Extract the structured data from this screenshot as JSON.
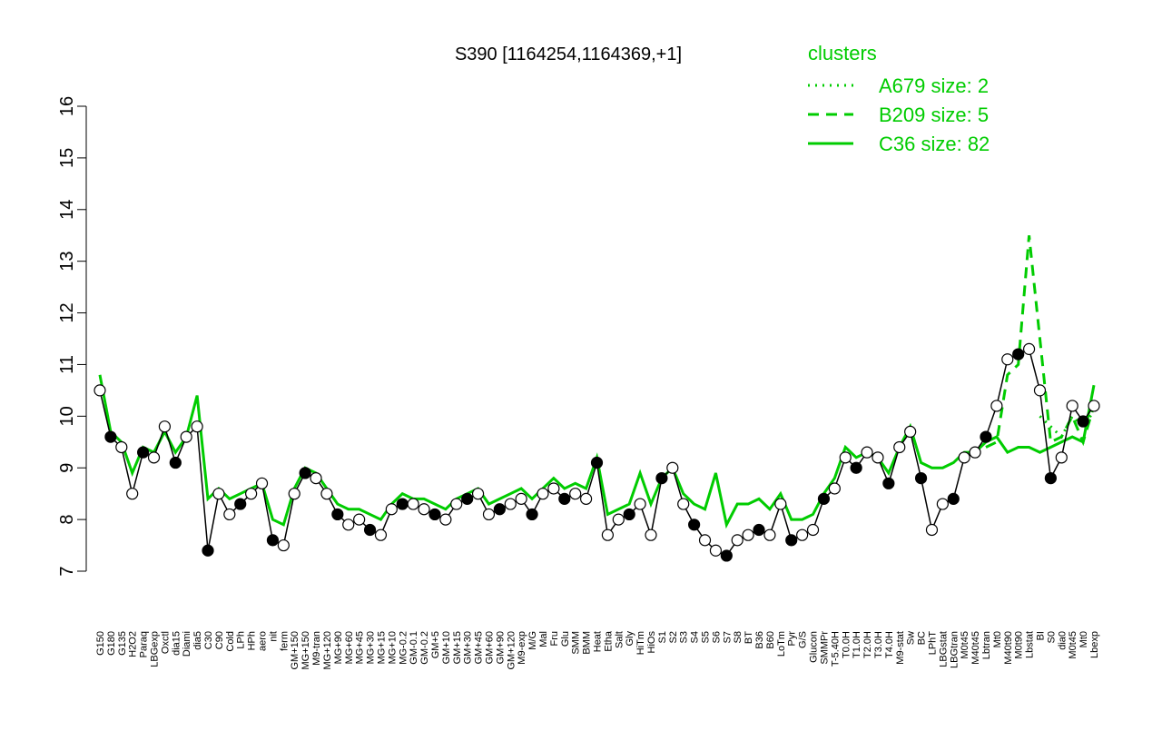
{
  "chart_data": {
    "type": "line",
    "title": "S390 [1164254,1164369,+1]",
    "legend_title": "clusters",
    "legend_color": "#00cc00",
    "legend_position": "top-right",
    "categories": [
      "G150",
      "G180",
      "G135",
      "H2O2",
      "Paraq",
      "LBGexp",
      "Oxctl",
      "dia15",
      "Diami",
      "dia5",
      "C30",
      "C90",
      "Cold",
      "LPh",
      "HPh",
      "aero",
      "nit",
      "ferm",
      "GM+150",
      "MG+150",
      "M9-tran",
      "MG+120",
      "MG+90",
      "MG+60",
      "MG+45",
      "MG+30",
      "MG+15",
      "MG+10",
      "MG-0.2",
      "GM-0.1",
      "GM-0.2",
      "GM+5",
      "GM+10",
      "GM+15",
      "GM+30",
      "GM+45",
      "GM+60",
      "GM+90",
      "GM+120",
      "M9-exp",
      "M/G",
      "Mal",
      "Fru",
      "Glu",
      "SMM",
      "BMM",
      "Heat",
      "Etha",
      "Salt",
      "Gly",
      "HiTm",
      "HiOs",
      "S1",
      "S2",
      "S3",
      "S4",
      "S5",
      "S6",
      "S7",
      "S8",
      "BT",
      "B36",
      "B60",
      "LoTm",
      "Pyr",
      "G/S",
      "Glucon",
      "SMMPr",
      "T-5.40H",
      "T0.0H",
      "T1.0H",
      "T2.0H",
      "T3.0H",
      "T4.0H",
      "M9-stat",
      "Sw",
      "BC",
      "LPhT",
      "LBGstat",
      "LBGtran",
      "M0t45",
      "M40t45",
      "Lbtran",
      "Mt0",
      "M40t90",
      "M0t90",
      "Lbstat",
      "BI",
      "S0",
      "dia0",
      "M0t45",
      "Mt0",
      "Lbexp"
    ],
    "values": [
      10.5,
      9.6,
      9.4,
      8.5,
      9.3,
      9.2,
      9.8,
      9.1,
      9.6,
      9.8,
      7.4,
      8.5,
      8.1,
      8.3,
      8.5,
      8.7,
      7.6,
      7.5,
      8.5,
      8.9,
      8.8,
      8.5,
      8.1,
      7.9,
      8.0,
      7.8,
      7.7,
      8.2,
      8.3,
      8.3,
      8.2,
      8.1,
      8.0,
      8.3,
      8.4,
      8.5,
      8.1,
      8.2,
      8.3,
      8.4,
      8.1,
      8.5,
      8.6,
      8.4,
      8.5,
      8.4,
      9.1,
      7.7,
      8.0,
      8.1,
      8.3,
      7.7,
      8.8,
      9.0,
      8.3,
      7.9,
      7.6,
      7.4,
      7.3,
      7.6,
      7.7,
      7.8,
      7.7,
      8.3,
      7.6,
      7.7,
      7.8,
      8.4,
      8.6,
      9.2,
      9.0,
      9.3,
      9.2,
      8.7,
      9.4,
      9.7,
      8.8,
      7.8,
      8.3,
      8.4,
      9.2,
      9.3,
      9.6,
      10.2,
      11.1,
      11.2,
      11.3,
      10.5,
      8.8,
      9.2,
      10.2,
      9.9,
      10.2
    ],
    "ylim": [
      7,
      16
    ],
    "yticks": [
      7,
      8,
      9,
      10,
      11,
      12,
      13,
      14,
      15,
      16
    ],
    "point_color": "#000000",
    "series": [
      {
        "name": "A679 size: 2",
        "color": "#00cc00",
        "dash": "dotted",
        "values": [
          null,
          null,
          null,
          null,
          null,
          null,
          null,
          null,
          null,
          null,
          null,
          null,
          null,
          null,
          null,
          null,
          null,
          null,
          null,
          null,
          null,
          null,
          null,
          null,
          null,
          null,
          null,
          null,
          null,
          null,
          null,
          null,
          null,
          null,
          null,
          null,
          null,
          null,
          null,
          null,
          null,
          null,
          null,
          null,
          null,
          null,
          null,
          null,
          null,
          null,
          null,
          null,
          null,
          null,
          null,
          null,
          null,
          null,
          null,
          null,
          null,
          null,
          null,
          null,
          null,
          null,
          null,
          null,
          null,
          null,
          null,
          null,
          null,
          null,
          null,
          null,
          null,
          null,
          null,
          null,
          null,
          null,
          null,
          null,
          null,
          null,
          null,
          10.0,
          9.8,
          9.6,
          10.0,
          9.8,
          10.1
        ]
      },
      {
        "name": "B209 size: 5",
        "color": "#00cc00",
        "dash": "dashed",
        "values": [
          null,
          null,
          null,
          null,
          null,
          null,
          null,
          null,
          null,
          null,
          null,
          null,
          null,
          null,
          null,
          null,
          null,
          null,
          null,
          null,
          null,
          null,
          null,
          null,
          null,
          null,
          null,
          null,
          null,
          null,
          null,
          null,
          null,
          null,
          null,
          null,
          null,
          null,
          null,
          null,
          null,
          null,
          null,
          null,
          null,
          null,
          null,
          null,
          null,
          null,
          null,
          null,
          null,
          null,
          null,
          null,
          null,
          null,
          null,
          null,
          null,
          null,
          null,
          null,
          null,
          null,
          null,
          null,
          null,
          null,
          null,
          null,
          null,
          null,
          null,
          null,
          null,
          null,
          null,
          null,
          null,
          null,
          9.4,
          9.5,
          10.8,
          11.0,
          13.5,
          11.5,
          9.5,
          9.6,
          10.0,
          9.5,
          10.2
        ]
      },
      {
        "name": "C36 size: 82",
        "color": "#00cc00",
        "dash": "solid",
        "values": [
          10.8,
          9.7,
          9.5,
          8.9,
          9.4,
          9.3,
          9.7,
          9.3,
          9.6,
          10.4,
          8.4,
          8.6,
          8.4,
          8.5,
          8.6,
          8.7,
          8.0,
          7.9,
          8.6,
          9.0,
          8.9,
          8.6,
          8.3,
          8.2,
          8.2,
          8.1,
          8.0,
          8.3,
          8.5,
          8.4,
          8.4,
          8.3,
          8.2,
          8.4,
          8.5,
          8.6,
          8.3,
          8.4,
          8.5,
          8.6,
          8.4,
          8.6,
          8.8,
          8.6,
          8.7,
          8.6,
          9.2,
          8.1,
          8.2,
          8.3,
          8.9,
          8.3,
          8.8,
          9.0,
          8.5,
          8.3,
          8.2,
          8.9,
          7.9,
          8.3,
          8.3,
          8.4,
          8.2,
          8.5,
          8.0,
          8.0,
          8.1,
          8.5,
          8.8,
          9.4,
          9.2,
          9.3,
          9.2,
          8.9,
          9.4,
          9.8,
          9.1,
          9.0,
          9.0,
          9.1,
          9.3,
          9.3,
          9.5,
          9.6,
          9.3,
          9.4,
          9.4,
          9.3,
          9.4,
          9.5,
          9.6,
          9.5,
          10.6
        ]
      }
    ]
  }
}
